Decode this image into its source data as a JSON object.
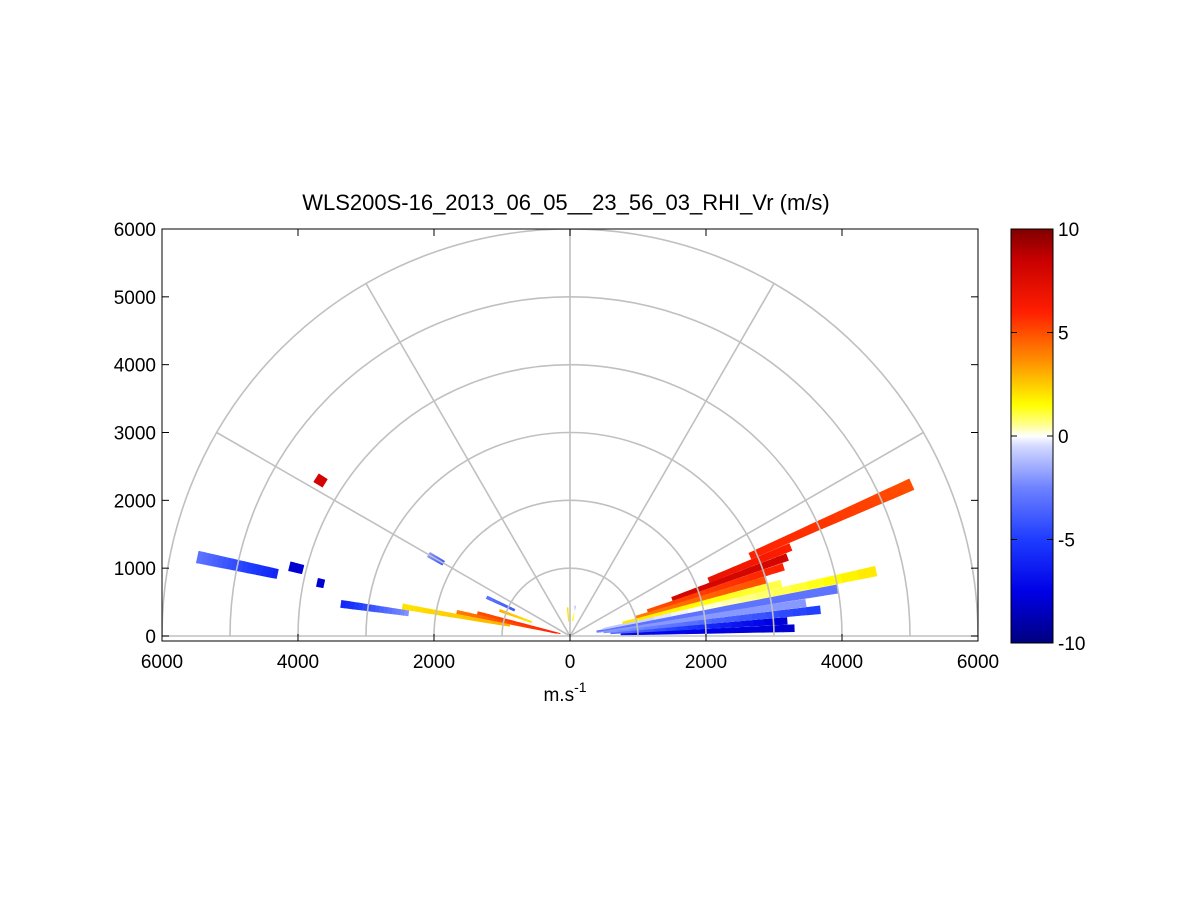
{
  "chart_data": {
    "type": "heatmap",
    "subtype": "polar RHI sector scan (semicircular)",
    "title": "WLS200S-16_2013_06_05__23_56_03_RHI_Vr (m/s)",
    "xlabel_base": "m.s",
    "xlabel_exponent": "-1",
    "ylabel": "",
    "xlim": [
      -6000,
      6000
    ],
    "ylim": [
      0,
      6000
    ],
    "x_ticks": [
      -6000,
      -4000,
      -2000,
      0,
      2000,
      4000,
      6000
    ],
    "x_tick_labels": [
      "6000",
      "4000",
      "2000",
      "0",
      "2000",
      "4000",
      "6000"
    ],
    "y_ticks": [
      0,
      1000,
      2000,
      3000,
      4000,
      5000,
      6000
    ],
    "y_tick_labels": [
      "0",
      "1000",
      "2000",
      "3000",
      "4000",
      "5000",
      "6000"
    ],
    "polar_grid": {
      "range_rings": [
        1000,
        2000,
        3000,
        4000,
        5000,
        6000
      ],
      "spokes_deg": [
        0,
        30,
        60,
        90,
        120,
        150,
        180
      ]
    },
    "grid": true,
    "colorbar": {
      "min": -10,
      "max": 10,
      "ticks": [
        -10,
        -5,
        0,
        5,
        10
      ],
      "tick_labels": [
        "-10",
        "-5",
        "0",
        "5",
        "10"
      ],
      "stops": [
        {
          "v": -10,
          "color": "#000080"
        },
        {
          "v": -7.5,
          "color": "#0000e6"
        },
        {
          "v": -5,
          "color": "#1e3cff"
        },
        {
          "v": -2.5,
          "color": "#6e82ff"
        },
        {
          "v": -0.5,
          "color": "#d2d8ff"
        },
        {
          "v": 0,
          "color": "#ffffff"
        },
        {
          "v": 0.5,
          "color": "#ffff96"
        },
        {
          "v": 1.5,
          "color": "#ffff00"
        },
        {
          "v": 3.5,
          "color": "#ff9600"
        },
        {
          "v": 6,
          "color": "#ff1e00"
        },
        {
          "v": 8.5,
          "color": "#c80000"
        },
        {
          "v": 10,
          "color": "#800000"
        }
      ]
    },
    "rays": [
      {
        "elev_deg": 2,
        "start": 750,
        "end": 3300,
        "vr_start": -7,
        "vr_end": -8
      },
      {
        "elev_deg": 4,
        "start": 600,
        "end": 3200,
        "vr_start": -3,
        "vr_end": -8
      },
      {
        "elev_deg": 6,
        "start": 500,
        "end": 3700,
        "vr_start": -2,
        "vr_end": -5
      },
      {
        "elev_deg": 8,
        "start": 400,
        "end": 3500,
        "vr_start": -2,
        "vr_end": -2
      },
      {
        "elev_deg": 10,
        "start": 400,
        "end": 4000,
        "vr_start": -3,
        "vr_end": -3
      },
      {
        "elev_deg": 12,
        "start": 500,
        "end": 4600,
        "vr_start": -1,
        "vr_end": 2
      },
      {
        "elev_deg": 14,
        "start": 800,
        "end": 3200,
        "vr_start": 2,
        "vr_end": 1
      },
      {
        "elev_deg": 16,
        "start": 1000,
        "end": 3000,
        "vr_start": 4,
        "vr_end": 5
      },
      {
        "elev_deg": 18,
        "start": 1200,
        "end": 3300,
        "vr_start": 5,
        "vr_end": 6
      },
      {
        "elev_deg": 20,
        "start": 1600,
        "end": 3400,
        "vr_start": 8,
        "vr_end": 8
      },
      {
        "elev_deg": 22,
        "start": 2200,
        "end": 3500,
        "vr_start": 7,
        "vr_end": 6
      },
      {
        "elev_deg": 24,
        "start": 2900,
        "end": 5500,
        "vr_start": 6,
        "vr_end": 5
      },
      {
        "elev_deg": 166,
        "start": 150,
        "end": 1400,
        "vr_start": 6,
        "vr_end": 5
      },
      {
        "elev_deg": 168,
        "start": 200,
        "end": 1700,
        "vr_start": 6,
        "vr_end": 4
      },
      {
        "elev_deg": 170,
        "start": 900,
        "end": 2500,
        "vr_start": 3,
        "vr_end": 2
      },
      {
        "elev_deg": 172,
        "start": 2400,
        "end": 3400,
        "vr_start": -2,
        "vr_end": -6
      },
      {
        "elev_deg": 168,
        "start": 3700,
        "end": 3800,
        "vr_start": -8,
        "vr_end": -8
      },
      {
        "elev_deg": 166,
        "start": 4050,
        "end": 4250,
        "vr_start": -8,
        "vr_end": -8
      },
      {
        "elev_deg": 168,
        "start": 4400,
        "end": 5600,
        "vr_start": -6,
        "vr_end": -3
      },
      {
        "elev_deg": 160,
        "start": 600,
        "end": 1100,
        "vr_start": 2,
        "vr_end": 3
      },
      {
        "elev_deg": 155,
        "start": 900,
        "end": 1350,
        "vr_start": -4,
        "vr_end": -3
      },
      {
        "elev_deg": 150,
        "start": 2150,
        "end": 2400,
        "vr_start": -4,
        "vr_end": -2
      },
      {
        "elev_deg": 148,
        "start": 4250,
        "end": 4400,
        "vr_start": 8,
        "vr_end": 8
      },
      {
        "elev_deg": 95,
        "start": 220,
        "end": 420,
        "vr_start": 2,
        "vr_end": 2
      },
      {
        "elev_deg": 80,
        "start": 230,
        "end": 450,
        "vr_start": 2,
        "vr_end": -1
      }
    ]
  }
}
